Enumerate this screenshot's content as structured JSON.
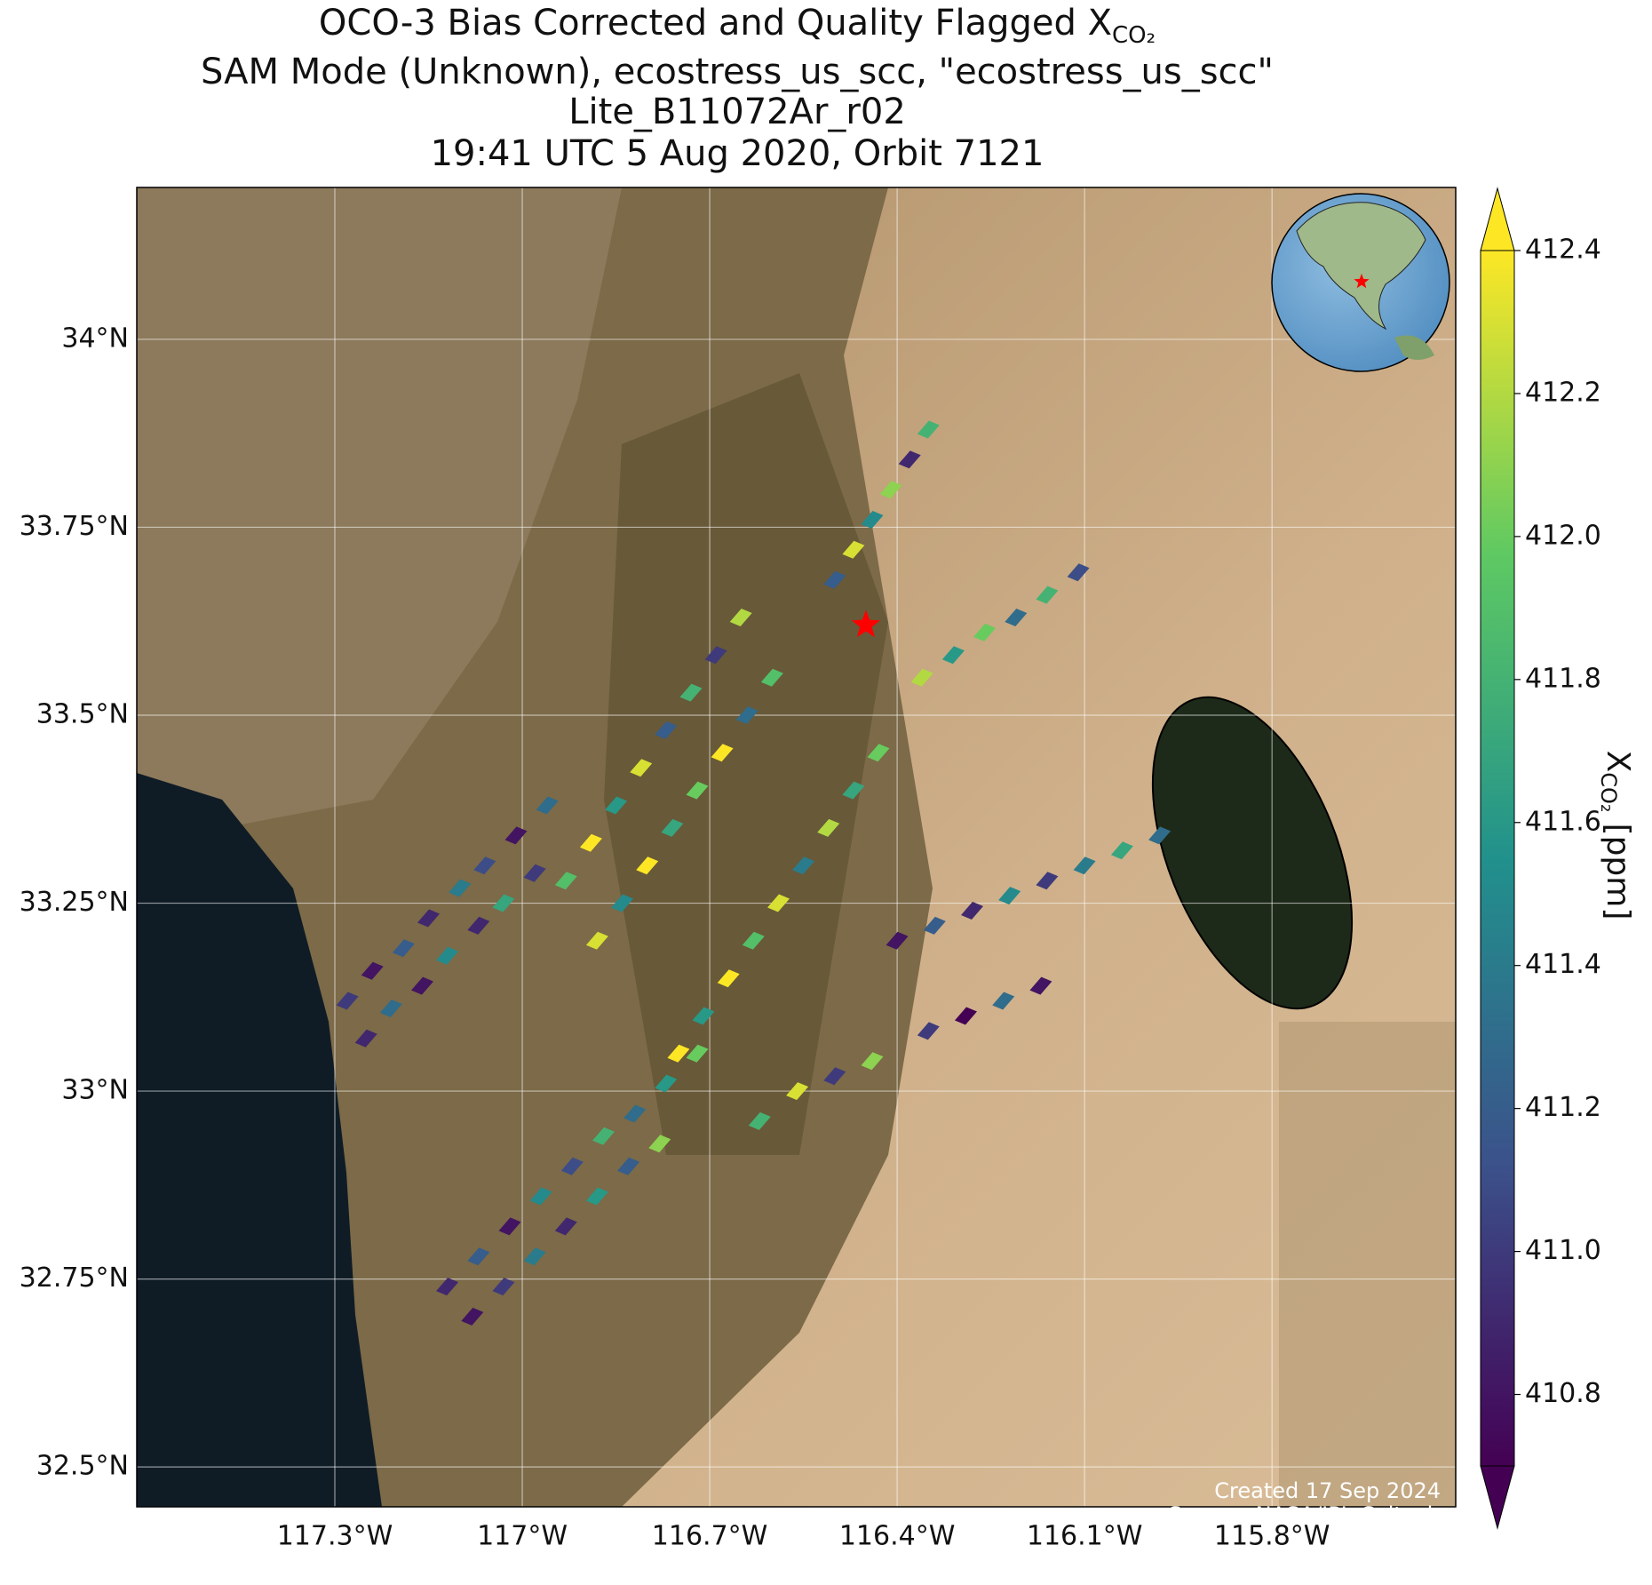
{
  "chart_data": {
    "type": "footprint-map",
    "title": [
      "OCO-3 Bias Corrected and Quality Flagged X",
      "SAM Mode (Unknown), ecostress_us_scc, \"ecostress_us_scc\"",
      "Lite_B11072Ar_r02",
      "19:41 UTC 5 Aug 2020, Orbit 7121"
    ],
    "title_subscript": "CO₂",
    "xlim": [
      -117.617,
      -115.506
    ],
    "ylim": [
      32.447,
      34.202
    ],
    "xticks": [
      {
        "value": -117.3,
        "label": "117.3°W"
      },
      {
        "value": -117.0,
        "label": "117°W"
      },
      {
        "value": -116.7,
        "label": "116.7°W"
      },
      {
        "value": -116.4,
        "label": "116.4°W"
      },
      {
        "value": -116.1,
        "label": "116.1°W"
      },
      {
        "value": -115.8,
        "label": "115.8°W"
      }
    ],
    "yticks": [
      {
        "value": 32.5,
        "label": "32.5°N"
      },
      {
        "value": 32.75,
        "label": "32.75°N"
      },
      {
        "value": 33.0,
        "label": "33°N"
      },
      {
        "value": 33.25,
        "label": "33.25°N"
      },
      {
        "value": 33.5,
        "label": "33.5°N"
      },
      {
        "value": 33.75,
        "label": "33.75°N"
      },
      {
        "value": 34.0,
        "label": "34°N"
      }
    ],
    "grid": true,
    "target": {
      "lon": -116.45,
      "lat": 33.62,
      "color": "#ff0000"
    },
    "colorbar": {
      "label": "X",
      "label_subscript": "CO₂",
      "label_unit": "[ppm]",
      "clim": [
        410.7,
        412.4
      ],
      "ticks": [
        410.8,
        {
          "value": 411.0,
          "label": "411.0"
        },
        411.2,
        411.4,
        411.6,
        411.8,
        {
          "value": 412.0,
          "label": "412.0"
        },
        412.2,
        412.4
      ]
    },
    "credits": [
      "Created 17 Sep 2024",
      "Source: NASA/JPL-Caltech"
    ],
    "footprints": {
      "lon": [
        -117.28,
        -117.24,
        -117.19,
        -117.15,
        -117.1,
        -117.06,
        -117.01,
        -116.96,
        -117.25,
        -117.21,
        -117.16,
        -117.12,
        -117.07,
        -117.03,
        -116.98,
        -117.12,
        -117.07,
        -117.02,
        -116.97,
        -116.92,
        -116.87,
        -116.82,
        -116.77,
        -116.72,
        -117.08,
        -117.03,
        -116.98,
        -116.93,
        -116.88,
        -116.83,
        -116.78,
        -116.93,
        -116.89,
        -116.85,
        -116.81,
        -116.77,
        -116.73,
        -116.69,
        -116.65,
        -116.88,
        -116.84,
        -116.8,
        -116.76,
        -116.72,
        -116.68,
        -116.64,
        -116.6,
        -116.75,
        -116.71,
        -116.67,
        -116.63,
        -116.59,
        -116.55,
        -116.51,
        -116.47,
        -116.43,
        -116.5,
        -116.47,
        -116.44,
        -116.41,
        -116.38,
        -116.35,
        -116.4,
        -116.34,
        -116.28,
        -116.22,
        -116.16,
        -116.1,
        -116.04,
        -115.98,
        -116.35,
        -116.29,
        -116.23,
        -116.17,
        -116.36,
        -116.31,
        -116.26,
        -116.21,
        -116.16,
        -116.11,
        -116.62,
        -116.56,
        -116.5,
        -116.44
      ],
      "lat": [
        33.12,
        33.16,
        33.19,
        33.23,
        33.27,
        33.3,
        33.34,
        33.38,
        33.07,
        33.11,
        33.14,
        33.18,
        33.22,
        33.25,
        33.29,
        32.74,
        32.78,
        32.82,
        32.86,
        32.9,
        32.94,
        32.97,
        33.01,
        33.05,
        32.7,
        32.74,
        32.78,
        32.82,
        32.86,
        32.9,
        32.93,
        33.28,
        33.33,
        33.38,
        33.43,
        33.48,
        33.53,
        33.58,
        33.63,
        33.2,
        33.25,
        33.3,
        33.35,
        33.4,
        33.45,
        33.5,
        33.55,
        33.05,
        33.1,
        33.15,
        33.2,
        33.25,
        33.3,
        33.35,
        33.4,
        33.45,
        33.68,
        33.72,
        33.76,
        33.8,
        33.84,
        33.88,
        33.2,
        33.22,
        33.24,
        33.26,
        33.28,
        33.3,
        33.32,
        33.34,
        33.08,
        33.1,
        33.12,
        33.14,
        33.55,
        33.58,
        33.61,
        33.63,
        33.66,
        33.69,
        32.96,
        33.0,
        33.02,
        33.04
      ],
      "xco2": [
        411.0,
        410.8,
        411.2,
        410.9,
        411.4,
        411.1,
        410.8,
        411.3,
        410.9,
        411.3,
        410.8,
        411.5,
        410.9,
        411.7,
        411.0,
        410.9,
        411.2,
        410.8,
        411.5,
        411.1,
        411.8,
        411.3,
        411.6,
        412.0,
        410.8,
        411.0,
        411.4,
        410.9,
        411.6,
        411.2,
        412.1,
        411.9,
        412.4,
        411.6,
        412.3,
        411.2,
        411.8,
        411.0,
        412.2,
        412.3,
        411.5,
        412.4,
        411.7,
        412.0,
        412.4,
        411.3,
        411.9,
        412.4,
        411.6,
        412.4,
        411.9,
        412.3,
        411.4,
        412.2,
        411.7,
        412.0,
        411.2,
        412.3,
        411.5,
        412.1,
        410.9,
        411.8,
        410.8,
        411.2,
        410.9,
        411.5,
        411.0,
        411.4,
        411.7,
        411.3,
        411.0,
        410.7,
        411.3,
        410.8,
        412.2,
        411.6,
        412.0,
        411.3,
        411.8,
        411.1,
        411.8,
        412.3,
        411.0,
        412.1
      ]
    }
  }
}
